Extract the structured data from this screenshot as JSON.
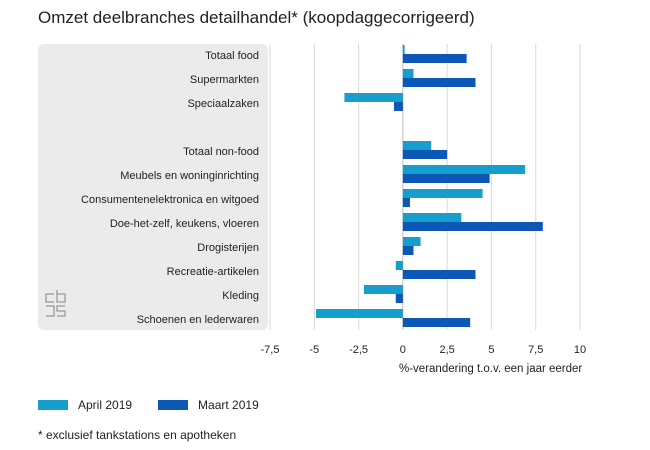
{
  "chart_data": {
    "type": "bar",
    "orientation": "horizontal",
    "title": "Omzet deelbranches detailhandel* (koopdaggecorrigeerd)",
    "xlabel": "%-verandering t.o.v. een jaar eerder",
    "xlim": [
      -7.5,
      10
    ],
    "xticks": [
      -7.5,
      -5,
      -2.5,
      0,
      2.5,
      5,
      7.5,
      10
    ],
    "xtick_labels": [
      "-7,5",
      "-5",
      "-2,5",
      "0",
      "2,5",
      "5",
      "7,5",
      "10"
    ],
    "grid": true,
    "legend_position": "bottom-left",
    "categories": [
      "Totaal food",
      "Supermarkten",
      "Speciaalzaken",
      "",
      "Totaal non-food",
      "Meubels en woninginrichting",
      "Consumentenelektronica en witgoed",
      "Doe-het-zelf, keukens, vloeren",
      "Drogisterijen",
      "Recreatie-artikelen",
      "Kleding",
      "Schoenen en lederwaren"
    ],
    "series": [
      {
        "name": "April 2019",
        "color": "#169fce",
        "values": [
          0.1,
          0.6,
          -3.3,
          null,
          1.6,
          6.9,
          4.5,
          3.3,
          1.0,
          -0.4,
          -2.2,
          -4.9
        ]
      },
      {
        "name": "Maart 2019",
        "color": "#0d57b5",
        "values": [
          3.6,
          4.1,
          -0.5,
          null,
          2.5,
          4.9,
          0.4,
          7.9,
          0.6,
          4.1,
          -0.4,
          3.8
        ]
      }
    ]
  },
  "footnote": "* exclusief tankstations en apotheken",
  "icons": {
    "logo": "cbs-logo-icon"
  }
}
